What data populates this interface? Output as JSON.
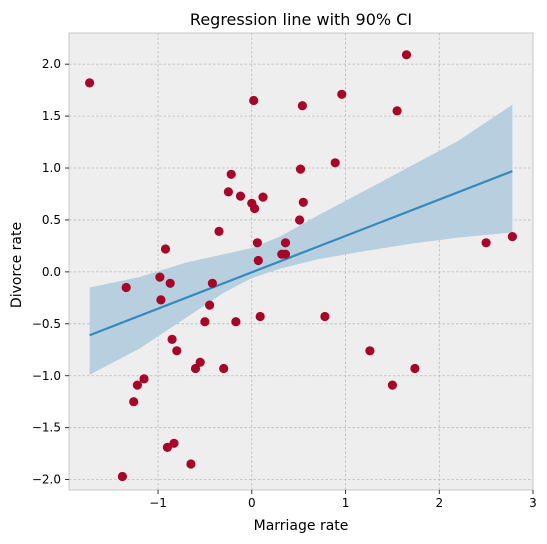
{
  "chart_data": {
    "type": "scatter",
    "title": "Regression line with 90% CI",
    "xlabel": "Marriage rate",
    "ylabel": "Divorce rate",
    "xlim": [
      -1.95,
      3.0
    ],
    "ylim": [
      -2.1,
      2.3
    ],
    "grid": true,
    "xticks": [
      {
        "value": -1,
        "label": "−1"
      },
      {
        "value": 0,
        "label": "0"
      },
      {
        "value": 1,
        "label": "1"
      },
      {
        "value": 2,
        "label": "2"
      },
      {
        "value": 3,
        "label": "3"
      }
    ],
    "yticks": [
      {
        "value": -2.0,
        "label": "−2.0"
      },
      {
        "value": -1.5,
        "label": "−1.5"
      },
      {
        "value": -1.0,
        "label": "−1.0"
      },
      {
        "value": -0.5,
        "label": "−0.5"
      },
      {
        "value": 0.0,
        "label": "0.0"
      },
      {
        "value": 0.5,
        "label": "0.5"
      },
      {
        "value": 1.0,
        "label": "1.0"
      },
      {
        "value": 1.5,
        "label": "1.5"
      },
      {
        "value": 2.0,
        "label": "2.0"
      }
    ],
    "points": [
      {
        "x": -1.73,
        "y": 1.82
      },
      {
        "x": -1.38,
        "y": -1.97
      },
      {
        "x": -1.34,
        "y": -0.15
      },
      {
        "x": -1.26,
        "y": -1.25
      },
      {
        "x": -1.22,
        "y": -1.09
      },
      {
        "x": -1.15,
        "y": -1.03
      },
      {
        "x": -0.98,
        "y": -0.05
      },
      {
        "x": -0.97,
        "y": -0.27
      },
      {
        "x": -0.92,
        "y": 0.22
      },
      {
        "x": -0.9,
        "y": -1.69
      },
      {
        "x": -0.87,
        "y": -0.11
      },
      {
        "x": -0.85,
        "y": -0.65
      },
      {
        "x": -0.83,
        "y": -1.65
      },
      {
        "x": -0.8,
        "y": -0.76
      },
      {
        "x": -0.65,
        "y": -1.85
      },
      {
        "x": -0.6,
        "y": -0.93
      },
      {
        "x": -0.55,
        "y": -0.87
      },
      {
        "x": -0.5,
        "y": -0.48
      },
      {
        "x": -0.45,
        "y": -0.32
      },
      {
        "x": -0.42,
        "y": -0.11
      },
      {
        "x": -0.35,
        "y": 0.39
      },
      {
        "x": -0.3,
        "y": -0.93
      },
      {
        "x": -0.25,
        "y": 0.77
      },
      {
        "x": -0.22,
        "y": 0.94
      },
      {
        "x": -0.17,
        "y": -0.48
      },
      {
        "x": -0.12,
        "y": 0.73
      },
      {
        "x": 0.0,
        "y": 0.66
      },
      {
        "x": 0.02,
        "y": 1.65
      },
      {
        "x": 0.03,
        "y": 0.61
      },
      {
        "x": 0.06,
        "y": 0.28
      },
      {
        "x": 0.07,
        "y": 0.11
      },
      {
        "x": 0.09,
        "y": -0.43
      },
      {
        "x": 0.12,
        "y": 0.72
      },
      {
        "x": 0.32,
        "y": 0.17
      },
      {
        "x": 0.36,
        "y": 0.17
      },
      {
        "x": 0.36,
        "y": 0.28
      },
      {
        "x": 0.51,
        "y": 0.5
      },
      {
        "x": 0.52,
        "y": 0.99
      },
      {
        "x": 0.54,
        "y": 1.6
      },
      {
        "x": 0.55,
        "y": 0.67
      },
      {
        "x": 0.78,
        "y": -0.43
      },
      {
        "x": 0.89,
        "y": 1.05
      },
      {
        "x": 0.96,
        "y": 1.71
      },
      {
        "x": 1.26,
        "y": -0.76
      },
      {
        "x": 1.5,
        "y": -1.09
      },
      {
        "x": 1.55,
        "y": 1.55
      },
      {
        "x": 1.65,
        "y": 2.09
      },
      {
        "x": 1.74,
        "y": -0.93
      },
      {
        "x": 2.5,
        "y": 0.28
      },
      {
        "x": 2.78,
        "y": 0.34
      }
    ],
    "regression_line": {
      "x": [
        -1.73,
        2.78
      ],
      "y": [
        -0.61,
        0.97
      ]
    },
    "ci_band": {
      "x": [
        -1.73,
        -1.2,
        -0.7,
        -0.3,
        0.0,
        0.3,
        0.7,
        1.2,
        1.7,
        2.2,
        2.78
      ],
      "lower": [
        -0.99,
        -0.74,
        -0.44,
        -0.2,
        -0.06,
        0.03,
        0.12,
        0.2,
        0.27,
        0.33,
        0.38
      ],
      "upper": [
        -0.15,
        -0.05,
        0.09,
        0.17,
        0.23,
        0.34,
        0.54,
        0.78,
        1.02,
        1.26,
        1.61
      ]
    },
    "colors": {
      "background": "#eeeeee",
      "points": "#a60628",
      "line": "#348abd",
      "band": "#b8cfe0"
    }
  }
}
